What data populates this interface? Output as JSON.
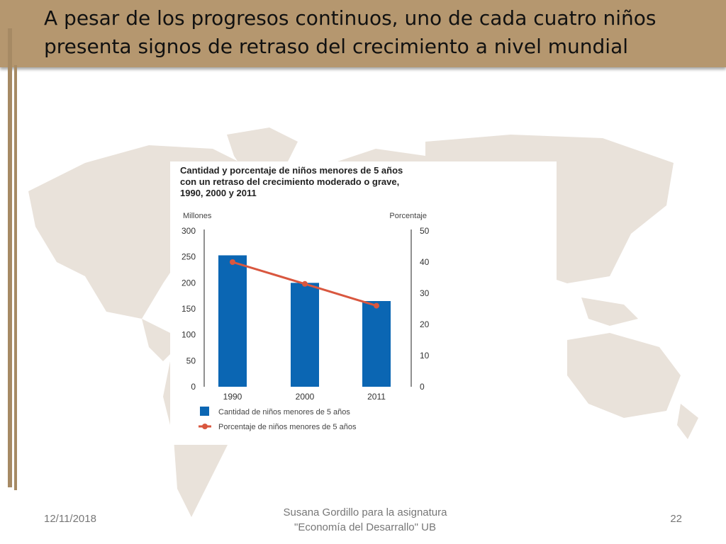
{
  "slide": {
    "title": "A pesar de los progresos continuos, uno de cada cuatro niños presenta signos de retraso del crecimiento a nivel mundial",
    "date": "12/11/2018",
    "author_line1": "Susana Gordillo para la asignatura",
    "author_line2": "\"Economía del Desarrallo\" UB",
    "page_number": "22",
    "colors": {
      "header": "#b5976f",
      "map": "#e9e2da",
      "bar": "#0b66b3",
      "line": "#d9573f"
    }
  },
  "chart_data": {
    "type": "bar",
    "title_lines": [
      "Cantidad y porcentaje de niños menores de 5 años",
      "con un retraso del crecimiento moderado o grave,",
      "1990, 2000 y 2011"
    ],
    "categories": [
      "1990",
      "2000",
      "2011"
    ],
    "ylabel": "Millones",
    "y2label": "Porcentaje",
    "ylim": [
      0,
      300
    ],
    "y2lim": [
      0,
      50
    ],
    "yticks": [
      "300",
      "250",
      "200",
      "150",
      "100",
      "50",
      "0"
    ],
    "y2ticks": [
      "50",
      "40",
      "30",
      "20",
      "10",
      "0"
    ],
    "series": [
      {
        "name": "Cantidad de niños menores de 5 años",
        "kind": "bar",
        "axis": "left",
        "values": [
          253,
          200,
          165
        ]
      },
      {
        "name": "Porcentaje de niños menores de 5 años",
        "kind": "line",
        "axis": "right",
        "values": [
          40,
          33,
          26
        ]
      }
    ],
    "grid": false,
    "legend": "bottom-left"
  }
}
